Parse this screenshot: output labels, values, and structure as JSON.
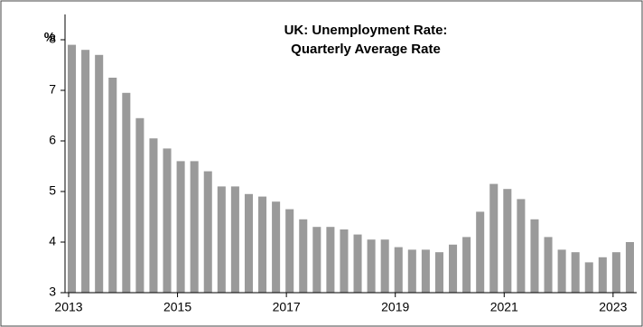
{
  "chart_data": {
    "type": "bar",
    "title": "UK: Unemployment Rate:",
    "subtitle": "Quarterly Average Rate",
    "y_label": "%",
    "categories": [
      "2013",
      null,
      null,
      null,
      null,
      null,
      null,
      null,
      "2015",
      null,
      null,
      null,
      null,
      null,
      null,
      null,
      "2017",
      null,
      null,
      null,
      null,
      null,
      null,
      null,
      "2019",
      null,
      null,
      null,
      null,
      null,
      null,
      null,
      "2021",
      null,
      null,
      null,
      null,
      null,
      null,
      null,
      "2023",
      null
    ],
    "values": [
      7.9,
      7.8,
      7.7,
      7.25,
      6.95,
      6.45,
      6.05,
      5.85,
      5.6,
      5.6,
      5.4,
      5.1,
      5.1,
      4.95,
      4.9,
      4.8,
      4.65,
      4.45,
      4.3,
      4.3,
      4.25,
      4.15,
      4.05,
      4.05,
      3.9,
      3.85,
      3.85,
      3.8,
      3.95,
      4.1,
      4.6,
      5.15,
      5.05,
      4.85,
      4.45,
      4.1,
      3.85,
      3.8,
      3.6,
      3.7,
      3.8,
      4.0
    ],
    "color": "#9a9a9a",
    "ylim": [
      3,
      8.5
    ],
    "yticks": [
      3,
      4,
      5,
      6,
      7,
      8
    ]
  }
}
